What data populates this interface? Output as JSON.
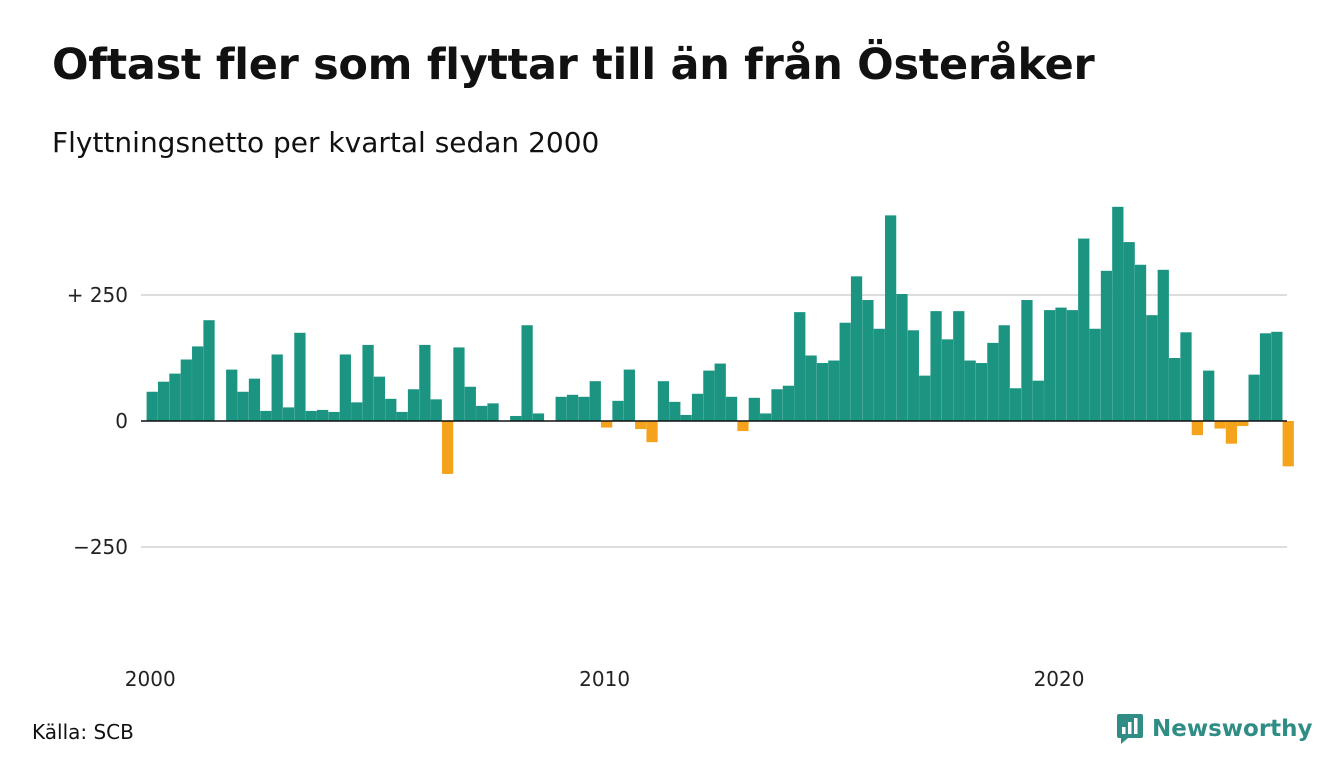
{
  "title": "Oftast fler som flyttar till än från Österåker",
  "subtitle": "Flyttningsnetto per kvartal sedan 2000",
  "source": "Källa: SCB",
  "brand": {
    "name": "Newsworthy",
    "icon": "newsworthy-logo-icon"
  },
  "colors": {
    "positive": "#1b9482",
    "negative": "#f5a21d",
    "grid": "#dddddd",
    "axis": "#111111"
  },
  "chart_data": {
    "type": "bar",
    "xlabel": "",
    "ylabel": "",
    "x_start": "2000 Q1",
    "x_ticks": [
      "2000",
      "2010",
      "2020"
    ],
    "y_ticks": [
      {
        "value": 250,
        "label": "+ 250"
      },
      {
        "value": 0,
        "label": "0"
      },
      {
        "value": -250,
        "label": "−250"
      }
    ],
    "ylim": [
      -430,
      430
    ],
    "grid": true,
    "values": [
      58,
      78,
      94,
      122,
      148,
      200,
      0,
      102,
      58,
      84,
      20,
      132,
      27,
      175,
      20,
      22,
      18,
      132,
      37,
      151,
      88,
      44,
      18,
      63,
      151,
      43,
      -105,
      146,
      68,
      30,
      35,
      0,
      10,
      190,
      15,
      0,
      48,
      52,
      48,
      79,
      -13,
      40,
      102,
      -16,
      -42,
      79,
      38,
      12,
      54,
      100,
      114,
      48,
      -20,
      46,
      15,
      63,
      70,
      216,
      130,
      115,
      120,
      195,
      287,
      240,
      183,
      408,
      252,
      180,
      90,
      218,
      162,
      218,
      120,
      115,
      155,
      190,
      65,
      240,
      80,
      220,
      225,
      220,
      362,
      183,
      298,
      425,
      355,
      310,
      210,
      300,
      125,
      176,
      -28,
      100,
      -15,
      -45,
      -10,
      92,
      174,
      177,
      -90
    ]
  }
}
